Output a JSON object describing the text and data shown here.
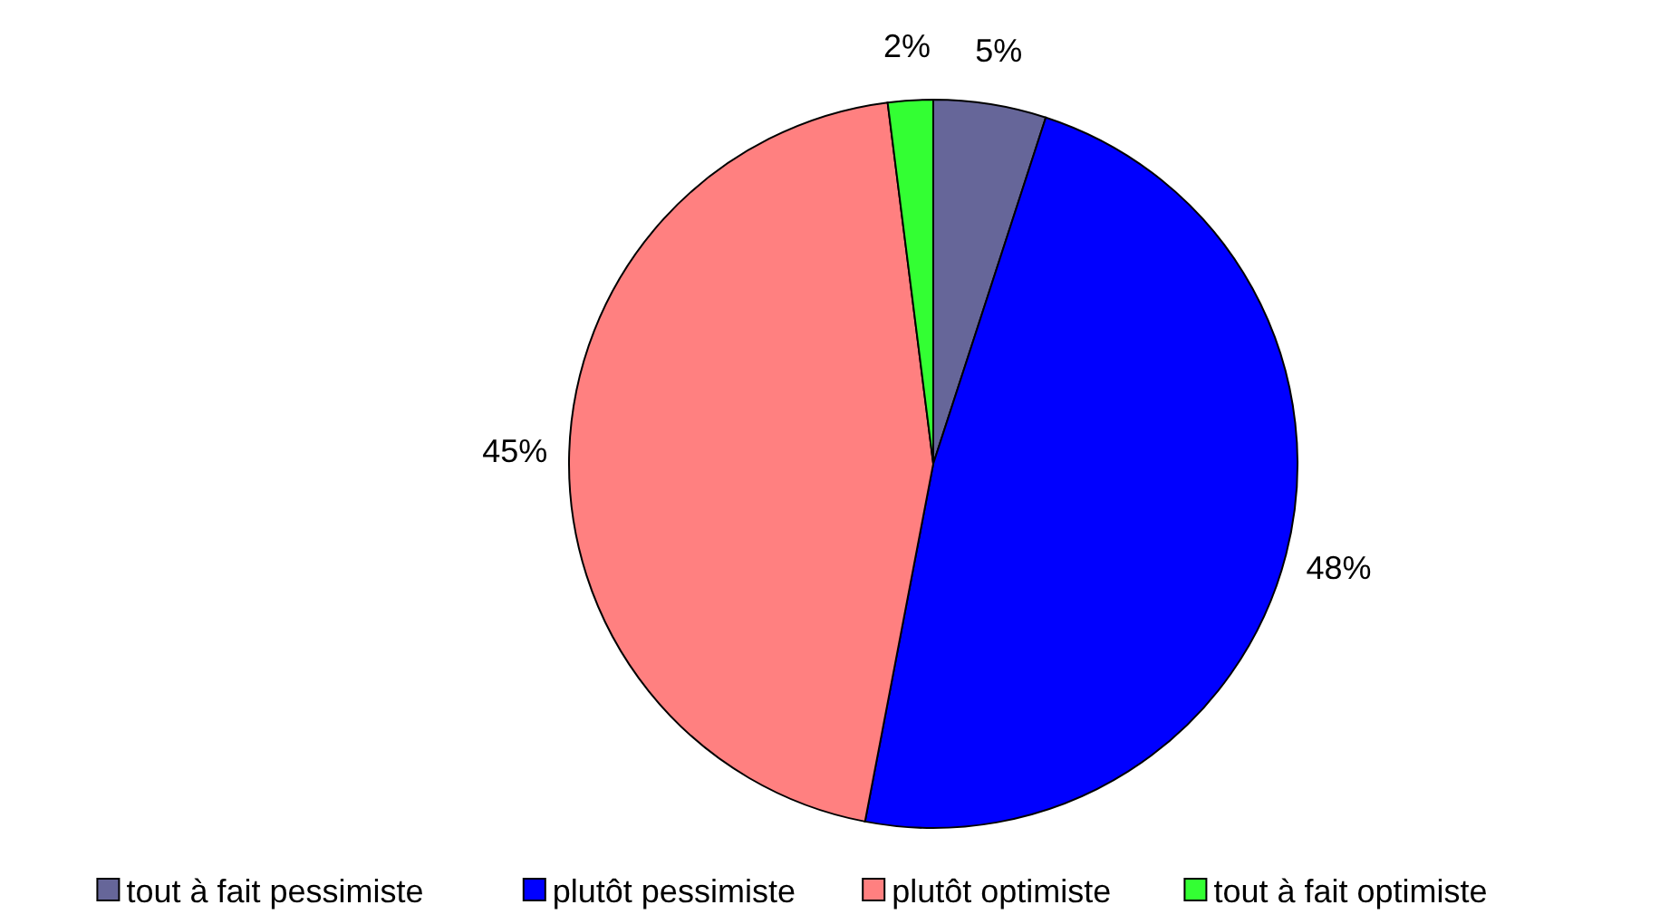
{
  "chart_data": {
    "type": "pie",
    "categories": [
      "tout à fait pessimiste",
      "plutôt pessimiste",
      "plutôt optimiste",
      "tout à fait optimiste"
    ],
    "values": [
      5,
      48,
      45,
      2
    ],
    "colors": [
      "#666699",
      "#0000ff",
      "#ff8080",
      "#33ff33"
    ],
    "value_labels": [
      "5%",
      "48%",
      "45%",
      "2%"
    ],
    "legend": "bottom"
  }
}
